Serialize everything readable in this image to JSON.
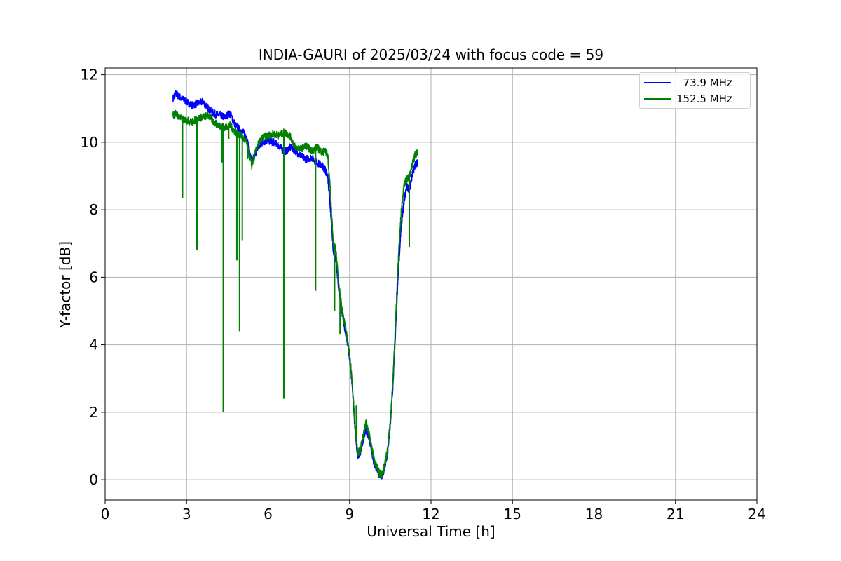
{
  "chart_data": {
    "type": "line",
    "title": "INDIA-GAURI of 2025/03/24 with focus code = 59",
    "xlabel": "Universal Time [h]",
    "ylabel": "Y-factor [dB]",
    "xlim": [
      0,
      24
    ],
    "ylim": [
      -0.6,
      12.2
    ],
    "xticks": [
      0,
      3,
      6,
      9,
      12,
      15,
      18,
      21,
      24
    ],
    "yticks": [
      0,
      2,
      4,
      6,
      8,
      10,
      12
    ],
    "grid": true,
    "legend_position": "top-right",
    "series": [
      {
        "name": "  73.9 MHz",
        "color": "#0000ff",
        "x": [
          2.5,
          2.6,
          2.8,
          3.0,
          3.2,
          3.4,
          3.6,
          3.8,
          4.0,
          4.2,
          4.4,
          4.6,
          4.8,
          5.0,
          5.2,
          5.4,
          5.6,
          5.8,
          6.0,
          6.2,
          6.4,
          6.6,
          6.8,
          7.0,
          7.2,
          7.4,
          7.6,
          7.8,
          8.0,
          8.1,
          8.2,
          8.3,
          8.4,
          8.5,
          8.6,
          8.7,
          8.8,
          8.9,
          9.0,
          9.1,
          9.2,
          9.3,
          9.4,
          9.5,
          9.6,
          9.7,
          9.8,
          9.9,
          10.0,
          10.1,
          10.2,
          10.3,
          10.4,
          10.5,
          10.6,
          10.7,
          10.8,
          10.9,
          11.0,
          11.1,
          11.2,
          11.3,
          11.4,
          11.5
        ],
        "y": [
          11.3,
          11.45,
          11.3,
          11.2,
          11.1,
          11.15,
          11.2,
          11.0,
          10.85,
          10.8,
          10.75,
          10.85,
          10.5,
          10.35,
          10.2,
          9.4,
          9.8,
          10.0,
          10.05,
          10.0,
          9.9,
          9.7,
          9.85,
          9.75,
          9.6,
          9.5,
          9.55,
          9.4,
          9.3,
          9.2,
          9.0,
          8.0,
          6.8,
          6.5,
          5.7,
          5.1,
          4.6,
          4.2,
          3.6,
          2.8,
          1.5,
          0.7,
          0.8,
          1.2,
          1.5,
          1.3,
          0.9,
          0.5,
          0.35,
          0.15,
          0.1,
          0.4,
          0.8,
          1.6,
          2.8,
          4.5,
          6.2,
          7.5,
          8.2,
          8.7,
          8.6,
          9.0,
          9.3,
          9.4
        ]
      },
      {
        "name": "152.5 MHz",
        "color": "#008000",
        "x": [
          2.5,
          2.6,
          2.8,
          3.0,
          3.2,
          3.4,
          3.6,
          3.8,
          4.0,
          4.2,
          4.4,
          4.6,
          4.8,
          5.0,
          5.2,
          5.4,
          5.6,
          5.8,
          6.0,
          6.2,
          6.4,
          6.6,
          6.8,
          7.0,
          7.2,
          7.4,
          7.6,
          7.8,
          8.0,
          8.1,
          8.2,
          8.3,
          8.4,
          8.5,
          8.6,
          8.7,
          8.8,
          8.9,
          9.0,
          9.1,
          9.2,
          9.3,
          9.4,
          9.5,
          9.6,
          9.7,
          9.8,
          9.9,
          10.0,
          10.1,
          10.2,
          10.3,
          10.4,
          10.5,
          10.6,
          10.7,
          10.8,
          10.9,
          11.0,
          11.1,
          11.2,
          11.3,
          11.4,
          11.5
        ],
        "y": [
          10.8,
          10.85,
          10.7,
          10.65,
          10.6,
          10.7,
          10.75,
          10.8,
          10.6,
          10.5,
          10.45,
          10.5,
          10.3,
          10.2,
          10.0,
          9.3,
          9.9,
          10.15,
          10.2,
          10.25,
          10.2,
          10.3,
          10.2,
          9.85,
          9.8,
          9.9,
          9.75,
          9.85,
          9.7,
          9.75,
          9.6,
          8.5,
          7.0,
          6.8,
          5.8,
          5.2,
          4.7,
          4.3,
          3.7,
          2.9,
          1.6,
          0.8,
          0.9,
          1.3,
          1.7,
          1.45,
          1.0,
          0.6,
          0.4,
          0.2,
          0.15,
          0.45,
          0.9,
          1.7,
          3.0,
          4.8,
          6.6,
          7.9,
          8.7,
          8.9,
          9.0,
          9.3,
          9.6,
          9.7
        ]
      }
    ],
    "spikes": [
      {
        "series": 1,
        "x": 2.85,
        "y": 8.35
      },
      {
        "series": 1,
        "x": 3.38,
        "y": 6.8
      },
      {
        "series": 1,
        "x": 4.3,
        "y": 9.4
      },
      {
        "series": 1,
        "x": 4.35,
        "y": 2.0
      },
      {
        "series": 1,
        "x": 4.55,
        "y": 10.1
      },
      {
        "series": 1,
        "x": 4.85,
        "y": 6.5
      },
      {
        "series": 1,
        "x": 4.95,
        "y": 4.4
      },
      {
        "series": 1,
        "x": 5.05,
        "y": 7.1
      },
      {
        "series": 1,
        "x": 5.25,
        "y": 9.5
      },
      {
        "series": 1,
        "x": 6.58,
        "y": 2.4
      },
      {
        "series": 1,
        "x": 7.75,
        "y": 5.6
      },
      {
        "series": 1,
        "x": 8.45,
        "y": 5.0
      },
      {
        "series": 1,
        "x": 8.65,
        "y": 4.3
      },
      {
        "series": 1,
        "x": 9.25,
        "y": 2.2
      },
      {
        "series": 1,
        "x": 11.2,
        "y": 6.9
      }
    ]
  }
}
